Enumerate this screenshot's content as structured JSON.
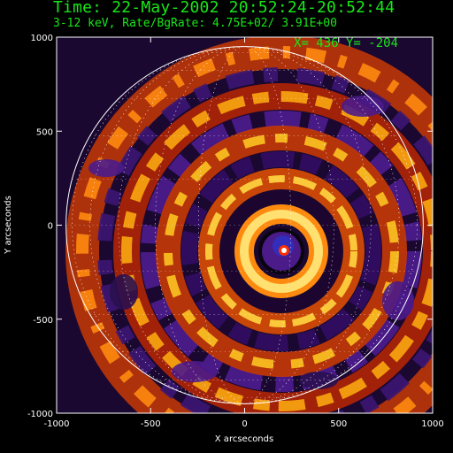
{
  "header": {
    "time_label": "Time: 22-May-2002 20:52:24-20:52:44",
    "energy_rate_label": "3-12 keV, Rate/BgRate:  4.75E+02/  3.91E+00"
  },
  "cursor": {
    "label": "X=  436 Y= -204"
  },
  "plot": {
    "xlabel": "X arcseconds",
    "ylabel": "Y arcseconds",
    "xlim": [
      -1000,
      1000
    ],
    "ylim": [
      -1000,
      1000
    ],
    "x_ticks": [
      -1000,
      -500,
      0,
      500,
      1000
    ],
    "y_ticks": [
      1000,
      500,
      0,
      -500,
      -1000
    ],
    "solar_limb_radius": 950,
    "source_position": [
      190,
      -140
    ],
    "colormap": [
      "#000000",
      "#2a1050",
      "#4b1b8a",
      "#801010",
      "#c03000",
      "#ff6a00",
      "#ffc400",
      "#ffffff"
    ]
  }
}
